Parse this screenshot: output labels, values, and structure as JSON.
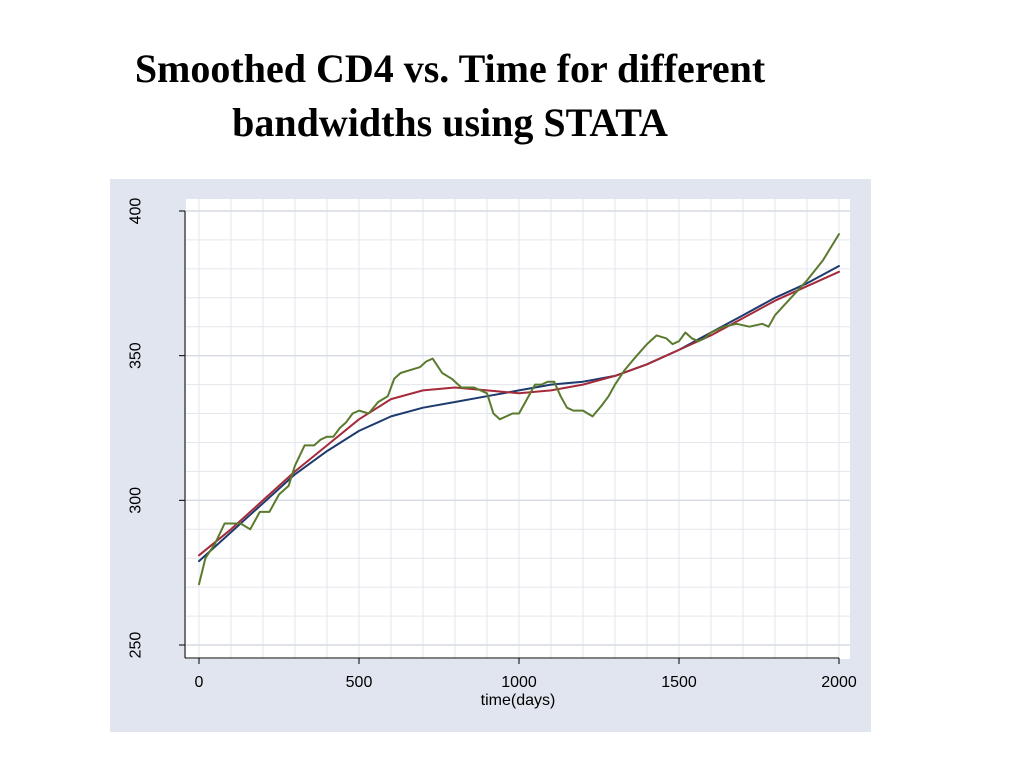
{
  "slide": {
    "title_line1": "Smoothed CD4 vs. Time for different",
    "title_line2": "bandwidths using STATA"
  },
  "colors": {
    "panel_bg": "#e1e5ef",
    "plot_bg": "#ffffff",
    "grid": "#e3e6ec",
    "axis": "#000000",
    "series_blue": "#1f3a6e",
    "series_red": "#a52a3a",
    "series_green": "#5a7a2e"
  },
  "chart_data": {
    "type": "line",
    "title": "",
    "xlabel": "time(days)",
    "ylabel": "",
    "xlim": [
      0,
      2000
    ],
    "ylim": [
      250,
      400
    ],
    "xticks": [
      0,
      500,
      1000,
      1500,
      2000
    ],
    "yticks": [
      250,
      300,
      350,
      400
    ],
    "grid": true,
    "legend": "none",
    "series": [
      {
        "color": "#1f3a6e",
        "x": [
          0,
          100,
          200,
          300,
          400,
          500,
          600,
          700,
          800,
          900,
          1000,
          1100,
          1200,
          1300,
          1400,
          1500,
          1600,
          1700,
          1800,
          1900,
          2000
        ],
        "y": [
          279,
          289,
          299,
          309,
          317,
          324,
          329,
          332,
          334,
          336,
          338,
          340,
          341,
          343,
          347,
          352,
          358,
          364,
          370,
          375,
          381
        ]
      },
      {
        "color": "#a52a3a",
        "x": [
          0,
          100,
          200,
          300,
          400,
          500,
          600,
          700,
          800,
          900,
          1000,
          1100,
          1200,
          1300,
          1400,
          1500,
          1600,
          1700,
          1800,
          1900,
          2000
        ],
        "y": [
          281,
          290,
          300,
          310,
          319,
          328,
          335,
          338,
          339,
          338,
          337,
          338,
          340,
          343,
          347,
          352,
          357,
          363,
          369,
          374,
          379
        ]
      },
      {
        "color": "#5a7a2e",
        "x": [
          0,
          20,
          50,
          80,
          100,
          130,
          160,
          190,
          220,
          250,
          280,
          300,
          330,
          360,
          380,
          400,
          420,
          440,
          460,
          480,
          500,
          530,
          560,
          590,
          610,
          630,
          660,
          690,
          710,
          730,
          760,
          790,
          820,
          860,
          900,
          920,
          940,
          960,
          980,
          1000,
          1020,
          1050,
          1070,
          1090,
          1110,
          1130,
          1150,
          1170,
          1200,
          1230,
          1260,
          1280,
          1300,
          1330,
          1360,
          1400,
          1430,
          1460,
          1480,
          1500,
          1520,
          1540,
          1560,
          1580,
          1600,
          1640,
          1680,
          1720,
          1760,
          1780,
          1800,
          1850,
          1900,
          1950,
          2000
        ],
        "y": [
          271,
          280,
          285,
          292,
          292,
          292,
          290,
          296,
          296,
          302,
          305,
          312,
          319,
          319,
          321,
          322,
          322,
          325,
          327,
          330,
          331,
          330,
          334,
          336,
          342,
          344,
          345,
          346,
          348,
          349,
          344,
          342,
          339,
          339,
          337,
          330,
          328,
          329,
          330,
          330,
          334,
          340,
          340,
          341,
          341,
          336,
          332,
          331,
          331,
          329,
          333,
          336,
          340,
          345,
          349,
          354,
          357,
          356,
          354,
          355,
          358,
          356,
          355,
          356,
          358,
          360,
          361,
          360,
          361,
          360,
          364,
          370,
          376,
          383,
          392
        ]
      }
    ]
  }
}
